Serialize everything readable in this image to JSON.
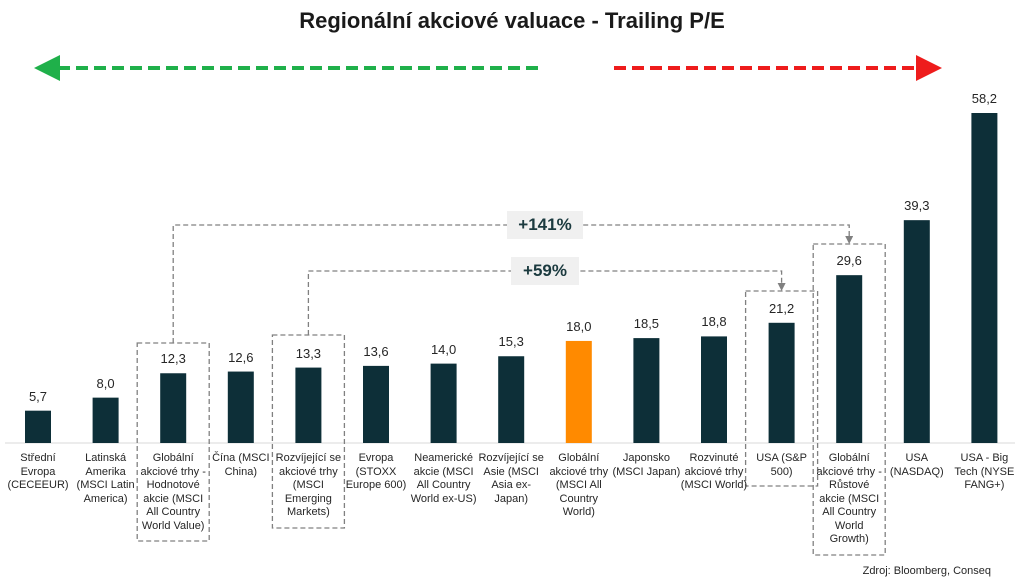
{
  "chart_data": {
    "type": "bar",
    "title": "Regionální akciové valuace - Trailing P/E",
    "categories": [
      "Střední Evropa (CECEEUR)",
      "Latinská Amerika (MSCI Latin America)",
      "Globální akciové trhy - Hodnotové akcie (MSCI All Country World Value)",
      "Čína (MSCI China)",
      "Rozvíjející se akciové trhy (MSCI Emerging Markets)",
      "Evropa (STOXX Europe 600)",
      "Neamerické akcie (MSCI All Country World ex-US)",
      "Rozvíjející se Asie (MSCI Asia ex-Japan)",
      "Globální akciové trhy (MSCI All Country World)",
      "Japonsko (MSCI Japan)",
      "Rozvinuté akciové trhy (MSCI World)",
      "USA (S&P 500)",
      "Globální akciové trhy - Růstové akcie (MSCI All Country World Growth)",
      "USA (NASDAQ)",
      "USA - Big Tech (NYSE FANG+)"
    ],
    "values": [
      5.7,
      8.0,
      12.3,
      12.6,
      13.3,
      13.6,
      14.0,
      15.3,
      18.0,
      18.5,
      18.8,
      21.2,
      29.6,
      39.3,
      58.2
    ],
    "value_labels": [
      "5,7",
      "8,0",
      "12,3",
      "12,6",
      "13,3",
      "13,6",
      "14,0",
      "15,3",
      "18,0",
      "18,5",
      "18,8",
      "21,2",
      "29,6",
      "39,3",
      "58,2"
    ],
    "highlight_index": 8,
    "boxed_indices": [
      2,
      4,
      11,
      12
    ],
    "annotations": [
      {
        "text": "+141%",
        "from_index": 2,
        "to_index": 12
      },
      {
        "text": "+59%",
        "from_index": 4,
        "to_index": 11
      }
    ],
    "ylim": [
      0,
      60
    ],
    "grid": false,
    "legend": "none"
  },
  "colors": {
    "bar": "#0d2f38",
    "highlight": "#ff8a00",
    "cheap_arrow": "#1fb04a",
    "expensive_arrow": "#ee1c1c",
    "box": "#808080"
  },
  "source": "Zdroj: Bloomberg, Conseq"
}
